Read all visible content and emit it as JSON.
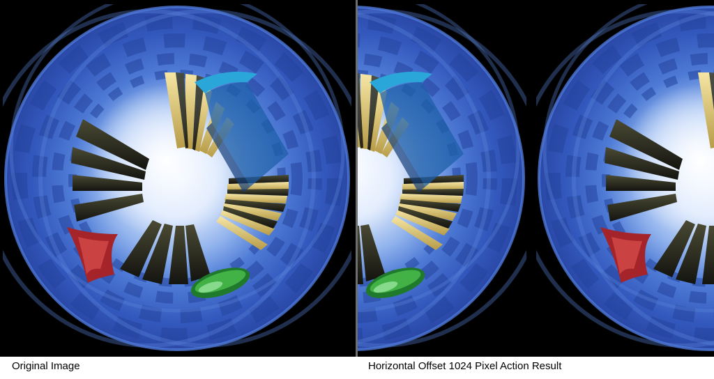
{
  "captions": {
    "left": "Original Image",
    "right": "Horizontal Offset 1024 Pixel Action Result"
  },
  "colors": {
    "background": "#000000",
    "tunnel_outer": "#3a62c8",
    "tunnel_checker": "#2a4aa8",
    "center_glow": "#eaf2ff",
    "dark_pillar": "#2b2a1e",
    "yellow_pillar": "#e8d483",
    "cyan_shard": "#2aa6d8",
    "red_ship": "#b02a2a",
    "green_disc": "#2e9a3a",
    "divider": "#6e6e6e"
  }
}
